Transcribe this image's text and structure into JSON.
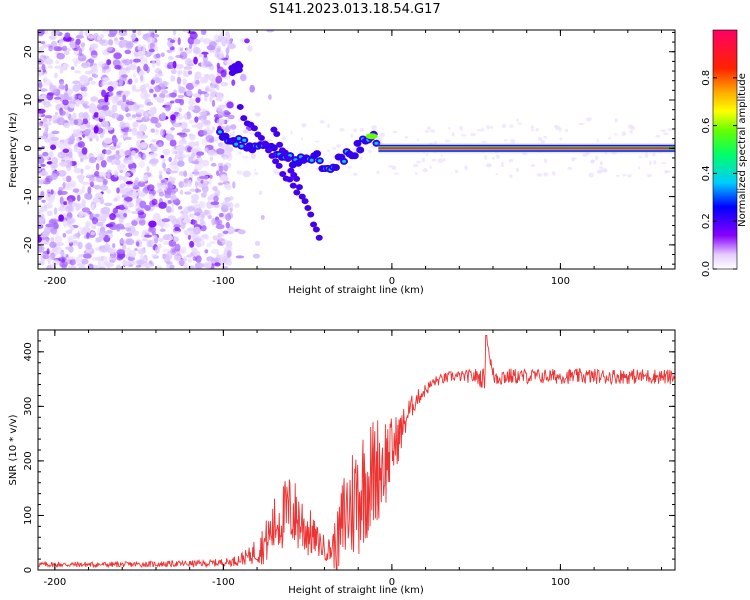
{
  "title": "S141.2023.013.18.54.G17",
  "chart_data": [
    {
      "type": "heatmap",
      "xlabel": "Height of straight line (km)",
      "ylabel": "Frequency (Hz)",
      "xlim": [
        -210,
        168
      ],
      "ylim": [
        -25,
        24.5
      ],
      "xticks": [
        -200,
        -100,
        0,
        100
      ],
      "yticks": [
        -20,
        -10,
        0,
        10,
        20
      ],
      "ridge": {
        "description_points_x": [
          -100,
          -85,
          -70,
          -55,
          -45,
          -38,
          -30,
          -20,
          -12,
          -8,
          0,
          50,
          100,
          168
        ],
        "freq_hz": [
          3,
          1,
          0,
          -3,
          -2,
          -4,
          -2,
          0,
          3,
          1,
          0,
          0,
          0,
          0
        ]
      },
      "colorbar": {
        "label": "Normalized spectral amplitude",
        "ticks": [
          "0.0",
          "0.2",
          "0.4",
          "0.6",
          "0.8"
        ],
        "range": [
          0,
          1
        ]
      }
    },
    {
      "type": "line",
      "xlabel": "Height of straight line (km)",
      "ylabel": "SNR (10 * v/v)",
      "xlim": [
        -210,
        168
      ],
      "ylim": [
        0,
        440
      ],
      "xticks": [
        -200,
        -100,
        0,
        100
      ],
      "yticks": [
        0,
        100,
        200,
        300,
        400
      ],
      "color": "#ee3333",
      "envelope": {
        "x": [
          -210,
          -160,
          -110,
          -95,
          -85,
          -75,
          -68,
          -60,
          -52,
          -45,
          -38,
          -32,
          -28,
          -24,
          -20,
          -16,
          -12,
          -8,
          -4,
          0,
          5,
          10,
          15,
          20,
          25,
          30,
          35,
          40,
          45,
          50,
          55,
          56,
          60,
          70,
          80,
          90,
          100,
          110,
          120,
          130,
          140,
          150,
          160,
          168
        ],
        "mean": [
          10,
          10,
          12,
          15,
          25,
          50,
          90,
          110,
          80,
          55,
          35,
          50,
          100,
          120,
          140,
          160,
          170,
          190,
          200,
          220,
          250,
          290,
          315,
          330,
          345,
          350,
          355,
          355,
          355,
          355,
          350,
          430,
          355,
          355,
          355,
          355,
          355,
          355,
          355,
          355,
          355,
          355,
          355,
          352
        ],
        "spread": [
          5,
          5,
          6,
          8,
          15,
          40,
          60,
          70,
          60,
          30,
          20,
          60,
          100,
          110,
          120,
          110,
          110,
          100,
          90,
          60,
          40,
          25,
          15,
          12,
          10,
          10,
          10,
          10,
          12,
          15,
          20,
          0,
          20,
          15,
          14,
          14,
          14,
          14,
          14,
          14,
          14,
          14,
          14,
          14
        ]
      }
    }
  ]
}
